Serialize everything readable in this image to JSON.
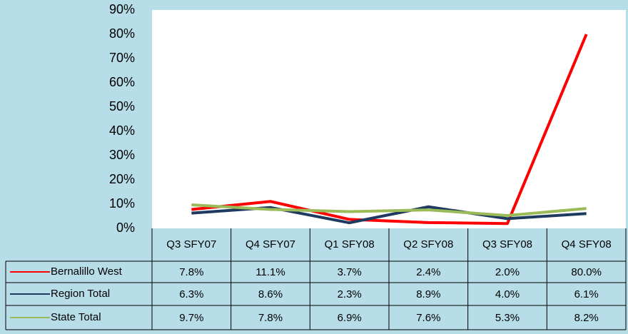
{
  "chart_data": {
    "type": "line",
    "categories": [
      "Q3 SFY07",
      "Q4 SFY07",
      "Q1 SFY08",
      "Q2 SFY08",
      "Q3 SFY08",
      "Q4 SFY08"
    ],
    "series": [
      {
        "name": "Bernalillo West",
        "color": "#ff0000",
        "values": [
          7.8,
          11.1,
          3.7,
          2.4,
          2.0,
          80.0
        ],
        "value_labels": [
          "7.8%",
          "11.1%",
          "3.7%",
          "2.4%",
          "2.0%",
          "80.0%"
        ]
      },
      {
        "name": "Region Total",
        "color": "#1f3a5f",
        "values": [
          6.3,
          8.6,
          2.3,
          8.9,
          4.0,
          6.1
        ],
        "value_labels": [
          "6.3%",
          "8.6%",
          "2.3%",
          "8.9%",
          "4.0%",
          "6.1%"
        ]
      },
      {
        "name": "State Total",
        "color": "#9bbb59",
        "values": [
          9.7,
          7.8,
          6.9,
          7.6,
          5.3,
          8.2
        ],
        "value_labels": [
          "9.7%",
          "7.8%",
          "6.9%",
          "7.6%",
          "5.3%",
          "8.2%"
        ]
      }
    ],
    "ylim": [
      0,
      90
    ],
    "yticks": [
      {
        "value": 0,
        "label": "0%"
      },
      {
        "value": 10,
        "label": "10%"
      },
      {
        "value": 20,
        "label": "20%"
      },
      {
        "value": 30,
        "label": "30%"
      },
      {
        "value": 40,
        "label": "40%"
      },
      {
        "value": 50,
        "label": "50%"
      },
      {
        "value": 60,
        "label": "60%"
      },
      {
        "value": 70,
        "label": "70%"
      },
      {
        "value": 80,
        "label": "80%"
      },
      {
        "value": 90,
        "label": "90%"
      }
    ],
    "data_table": true
  }
}
